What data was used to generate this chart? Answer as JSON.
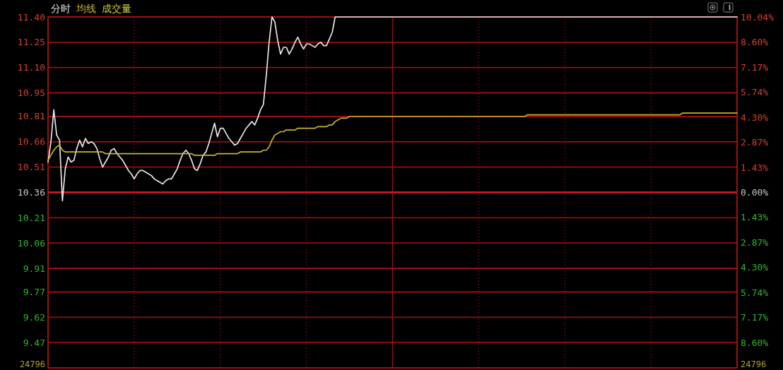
{
  "chart_data": {
    "type": "line",
    "categories": [
      null,
      null,
      null,
      null,
      null,
      null,
      null,
      null,
      null,
      null,
      null,
      null,
      null,
      null,
      null,
      null,
      null,
      null,
      null,
      null,
      null,
      null,
      null,
      null,
      null,
      null,
      null,
      null,
      null,
      null,
      null,
      null,
      null,
      null,
      null,
      null,
      null,
      null,
      null,
      null,
      null,
      null,
      null,
      null,
      null,
      null,
      null,
      null,
      null,
      null,
      null,
      null,
      null,
      null,
      null,
      null,
      null,
      null,
      null,
      null,
      null,
      null,
      null,
      null,
      null,
      null,
      null,
      null,
      null,
      null,
      null,
      null,
      null,
      null,
      null,
      null,
      null,
      null,
      null,
      null,
      null,
      null,
      null,
      null,
      null,
      null,
      null,
      null,
      null,
      null,
      null,
      null,
      null,
      null,
      null,
      null,
      null,
      null,
      null,
      null,
      null,
      null,
      null,
      null,
      null,
      null,
      null,
      null,
      null,
      null,
      null,
      null,
      null,
      null,
      null,
      null,
      null,
      null,
      null,
      null,
      null,
      null,
      null,
      null,
      null,
      null,
      null,
      null,
      null,
      null,
      null,
      null,
      null,
      null,
      null,
      null,
      null,
      null,
      null,
      null,
      null,
      null,
      null,
      null,
      null,
      null,
      null,
      null,
      null,
      null,
      null,
      null,
      null,
      null,
      null,
      null,
      null,
      null,
      null,
      null,
      null,
      null,
      null,
      null,
      null,
      null,
      null,
      null,
      null,
      null,
      null,
      null,
      null,
      null,
      null,
      null,
      null,
      null,
      null,
      null,
      null,
      null,
      null,
      null,
      null,
      null,
      null,
      null,
      null,
      null,
      null,
      null,
      null,
      null,
      null,
      null,
      null,
      null,
      null,
      null,
      null,
      null,
      null,
      null,
      null,
      null,
      null,
      null,
      null,
      null,
      null,
      null,
      null,
      null,
      null,
      null,
      null,
      null,
      null,
      null,
      null,
      null,
      null,
      null,
      null,
      null,
      null,
      null,
      null,
      null,
      null,
      null,
      null,
      null,
      null,
      null,
      null,
      null,
      null,
      null,
      null
    ],
    "series": [
      {
        "name": "分时",
        "color": "#e6e6e6",
        "values": [
          10.54,
          10.66,
          10.85,
          10.7,
          10.67,
          10.31,
          10.5,
          10.57,
          10.54,
          10.55,
          10.62,
          10.67,
          10.63,
          10.68,
          10.65,
          10.66,
          10.65,
          10.62,
          10.56,
          10.51,
          10.54,
          10.57,
          10.61,
          10.62,
          10.59,
          10.57,
          10.55,
          10.52,
          10.49,
          10.47,
          10.44,
          10.47,
          10.49,
          10.49,
          10.48,
          10.47,
          10.46,
          10.44,
          10.43,
          10.42,
          10.41,
          10.43,
          10.44,
          10.44,
          10.47,
          10.5,
          10.55,
          10.59,
          10.61,
          10.59,
          10.55,
          10.5,
          10.49,
          10.53,
          10.58,
          10.6,
          10.65,
          10.71,
          10.77,
          10.69,
          10.74,
          10.74,
          10.71,
          10.68,
          10.66,
          10.64,
          10.65,
          10.68,
          10.71,
          10.74,
          10.76,
          10.78,
          10.76,
          10.8,
          10.85,
          10.88,
          11.05,
          11.25,
          11.4,
          11.37,
          11.26,
          11.18,
          11.22,
          11.22,
          11.18,
          11.21,
          11.25,
          11.28,
          11.24,
          11.21,
          11.24,
          11.24,
          11.23,
          11.22,
          11.24,
          11.25,
          11.23,
          11.23,
          11.27,
          11.31,
          11.4,
          11.4,
          11.4,
          11.4,
          11.4,
          11.4,
          11.4,
          11.4,
          11.4,
          11.4,
          11.4,
          11.4,
          11.4,
          11.4,
          11.4,
          11.4,
          11.4,
          11.4,
          11.4,
          11.4,
          11.4,
          11.4,
          11.4,
          11.4,
          11.4,
          11.4,
          11.4,
          11.4,
          11.4,
          11.4,
          11.4,
          11.4,
          11.4,
          11.4,
          11.4,
          11.4,
          11.4,
          11.4,
          11.4,
          11.4,
          11.4,
          11.4,
          11.4,
          11.4,
          11.4,
          11.4,
          11.4,
          11.4,
          11.4,
          11.4,
          11.4,
          11.4,
          11.4,
          11.4,
          11.4,
          11.4,
          11.4,
          11.4,
          11.4,
          11.4,
          11.4,
          11.4,
          11.4,
          11.4,
          11.4,
          11.4,
          11.4,
          11.4,
          11.4,
          11.4,
          11.4,
          11.4,
          11.4,
          11.4,
          11.4,
          11.4,
          11.4,
          11.4,
          11.4,
          11.4,
          11.4,
          11.4,
          11.4,
          11.4,
          11.4,
          11.4,
          11.4,
          11.4,
          11.4,
          11.4,
          11.4,
          11.4,
          11.4,
          11.4,
          11.4,
          11.4,
          11.4,
          11.4,
          11.4,
          11.4,
          11.4,
          11.4,
          11.4,
          11.4,
          11.4,
          11.4,
          11.4,
          11.4,
          11.4,
          11.4,
          11.4,
          11.4,
          11.4,
          11.4,
          11.4,
          11.4,
          11.4,
          11.4,
          11.4,
          11.4,
          11.4,
          11.4,
          11.4,
          11.4,
          11.4,
          11.4,
          11.4,
          11.4,
          11.4,
          11.4,
          11.4,
          11.4,
          11.4,
          11.4,
          11.4,
          11.4,
          11.4,
          11.4,
          11.4,
          11.4,
          11.4
        ]
      },
      {
        "name": "均线",
        "color": "#c8b432",
        "values": [
          10.55,
          10.58,
          10.61,
          10.63,
          10.64,
          10.61,
          10.6,
          10.6,
          10.6,
          10.6,
          10.6,
          10.6,
          10.6,
          10.6,
          10.6,
          10.6,
          10.6,
          10.6,
          10.6,
          10.6,
          10.59,
          10.59,
          10.59,
          10.59,
          10.59,
          10.59,
          10.59,
          10.59,
          10.59,
          10.59,
          10.59,
          10.59,
          10.59,
          10.59,
          10.59,
          10.59,
          10.59,
          10.59,
          10.59,
          10.59,
          10.59,
          10.59,
          10.59,
          10.59,
          10.59,
          10.59,
          10.59,
          10.59,
          10.59,
          10.59,
          10.59,
          10.58,
          10.58,
          10.58,
          10.58,
          10.58,
          10.58,
          10.58,
          10.58,
          10.59,
          10.59,
          10.59,
          10.59,
          10.59,
          10.59,
          10.59,
          10.59,
          10.6,
          10.6,
          10.6,
          10.6,
          10.6,
          10.6,
          10.6,
          10.6,
          10.61,
          10.61,
          10.63,
          10.67,
          10.7,
          10.71,
          10.72,
          10.72,
          10.73,
          10.73,
          10.73,
          10.73,
          10.74,
          10.74,
          10.74,
          10.74,
          10.74,
          10.74,
          10.74,
          10.75,
          10.75,
          10.75,
          10.75,
          10.76,
          10.76,
          10.78,
          10.79,
          10.8,
          10.8,
          10.8,
          10.81,
          10.81,
          10.81,
          10.81,
          10.81,
          10.81,
          10.81,
          10.81,
          10.81,
          10.81,
          10.81,
          10.81,
          10.81,
          10.81,
          10.81,
          10.81,
          10.81,
          10.81,
          10.81,
          10.81,
          10.81,
          10.81,
          10.81,
          10.81,
          10.81,
          10.81,
          10.81,
          10.81,
          10.81,
          10.81,
          10.81,
          10.81,
          10.81,
          10.81,
          10.81,
          10.81,
          10.81,
          10.81,
          10.81,
          10.81,
          10.81,
          10.81,
          10.81,
          10.81,
          10.81,
          10.81,
          10.81,
          10.81,
          10.81,
          10.81,
          10.81,
          10.81,
          10.81,
          10.81,
          10.81,
          10.81,
          10.81,
          10.81,
          10.81,
          10.81,
          10.81,
          10.81,
          10.82,
          10.82,
          10.82,
          10.82,
          10.82,
          10.82,
          10.82,
          10.82,
          10.82,
          10.82,
          10.82,
          10.82,
          10.82,
          10.82,
          10.82,
          10.82,
          10.82,
          10.82,
          10.82,
          10.82,
          10.82,
          10.82,
          10.82,
          10.82,
          10.82,
          10.82,
          10.82,
          10.82,
          10.82,
          10.82,
          10.82,
          10.82,
          10.82,
          10.82,
          10.82,
          10.82,
          10.82,
          10.82,
          10.82,
          10.82,
          10.82,
          10.82,
          10.82,
          10.82,
          10.82,
          10.82,
          10.82,
          10.82,
          10.82,
          10.82,
          10.82,
          10.82,
          10.82,
          10.82,
          10.83,
          10.83,
          10.83,
          10.83,
          10.83,
          10.83,
          10.83,
          10.83,
          10.83,
          10.83,
          10.83,
          10.83,
          10.83,
          10.83,
          10.83,
          10.83,
          10.83,
          10.83,
          10.83,
          10.83
        ]
      }
    ],
    "ylim": [
      9.32,
      11.4
    ],
    "yticks": [
      9.47,
      9.62,
      9.77,
      9.91,
      10.06,
      10.21,
      10.36,
      10.51,
      10.66,
      10.81,
      10.95,
      {
        "value": 11.1,
        "label": "11.10"
      },
      11.25,
      {
        "value": 11.4,
        "label": "11.40"
      }
    ],
    "y2lim": [
      -10.04,
      10.04
    ],
    "y2ticks": [
      {
        "value": -8.6,
        "label": "8.60%"
      },
      {
        "value": -7.17,
        "label": "7.17%"
      },
      {
        "value": -5.74,
        "label": "5.74%"
      },
      {
        "value": -4.3,
        "label": "4.30%"
      },
      {
        "value": -2.87,
        "label": "2.87%"
      },
      {
        "value": -1.43,
        "label": "1.43%"
      },
      {
        "value": 0,
        "label": "0.00%"
      },
      {
        "value": 1.43,
        "label": "1.43%"
      },
      {
        "value": 2.87,
        "label": "2.87%"
      },
      {
        "value": 4.3,
        "label": "4.30%"
      },
      {
        "value": 5.74,
        "label": "5.74%"
      },
      {
        "value": 7.17,
        "label": "7.17%"
      },
      {
        "value": 8.6,
        "label": "8.60%"
      },
      {
        "value": 10.04,
        "label": "10.04%"
      }
    ],
    "grid": "y",
    "ref_lines": [
      {
        "axis": "y",
        "value": 10.36,
        "color": "#c81414"
      }
    ],
    "legend": "top left",
    "annotations": [
      "成交量",
      "24796",
      "24796"
    ]
  }
}
